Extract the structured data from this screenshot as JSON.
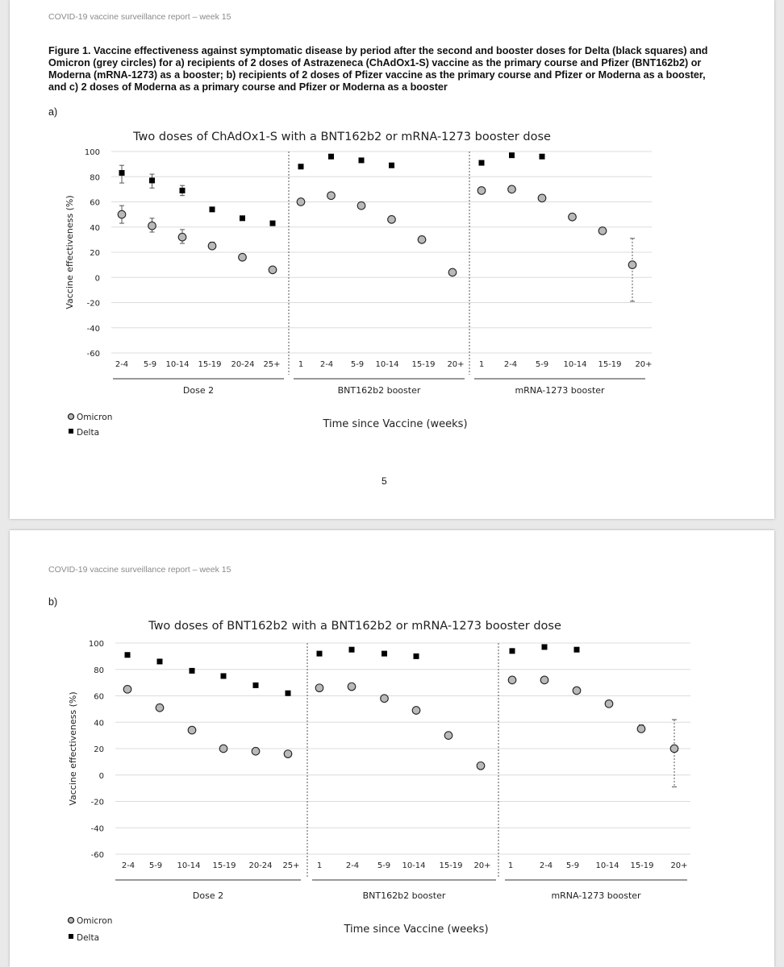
{
  "pages": [
    {
      "header": "COVID-19 vaccine surveillance report – week 15",
      "caption": "Figure 1. Vaccine effectiveness against symptomatic disease by period after the second and booster doses for Delta (black squares) and Omicron (grey circles) for a) recipients of 2 doses of Astrazeneca (ChAdOx1-S) vaccine as the primary course and Pfizer (BNT162b2) or Moderna (mRNA-1273) as a booster; b) recipients of 2 doses of Pfizer vaccine as the primary course and Pfizer or Moderna as a booster, and c) 2 doses of Moderna as a primary course and Pfizer or Moderna as a booster",
      "sublabel": "a)",
      "page_number": "5"
    },
    {
      "header": "COVID-19 vaccine surveillance report – week 15",
      "sublabel": "b)"
    }
  ],
  "chart_data": [
    {
      "type": "scatter",
      "title": "Two doses of ChAdOx1-S with a BNT162b2 or mRNA-1273 booster dose",
      "ylabel": "Vaccine effectiveness (%)",
      "xlabel": "Time since Vaccine (weeks)",
      "ylim": [
        -60,
        100
      ],
      "yticks": [
        100,
        80,
        60,
        40,
        20,
        0,
        -20,
        -40,
        -60
      ],
      "grid": true,
      "legend": [
        "Omicron",
        "Delta"
      ],
      "legend_position": "bottom-left",
      "categories": [
        "2-4",
        "5-9",
        "10-14",
        "15-19",
        "20-24",
        "25+",
        "1",
        "2-4",
        "5-9",
        "10-14",
        "15-19",
        "20+",
        "1",
        "2-4",
        "5-9",
        "10-14",
        "15-19",
        "20+"
      ],
      "groups": [
        {
          "label": "Dose 2",
          "count": 6
        },
        {
          "label": "BNT162b2 booster",
          "count": 6
        },
        {
          "label": "mRNA-1273 booster",
          "count": 6
        }
      ],
      "series": [
        {
          "name": "Omicron",
          "values": [
            50,
            41,
            32,
            25,
            16,
            6,
            60,
            65,
            57,
            46,
            30,
            4,
            69,
            70,
            63,
            48,
            37,
            10
          ],
          "error_low": [
            43,
            36,
            27,
            23,
            null,
            null,
            null,
            null,
            null,
            null,
            null,
            null,
            null,
            null,
            null,
            null,
            null,
            -19
          ],
          "error_high": [
            57,
            47,
            38,
            28,
            null,
            null,
            null,
            null,
            null,
            null,
            null,
            null,
            null,
            null,
            null,
            null,
            null,
            31
          ]
        },
        {
          "name": "Delta",
          "values": [
            83,
            77,
            69,
            54,
            47,
            43,
            88,
            96,
            93,
            89,
            null,
            null,
            91,
            97,
            96,
            null,
            null,
            null
          ],
          "error_low": [
            75,
            71,
            65,
            null,
            null,
            null,
            null,
            null,
            null,
            null,
            null,
            null,
            null,
            null,
            null,
            null,
            null,
            null
          ],
          "error_high": [
            89,
            82,
            73,
            null,
            null,
            null,
            null,
            null,
            null,
            null,
            null,
            null,
            null,
            null,
            null,
            null,
            null,
            null
          ]
        }
      ]
    },
    {
      "type": "scatter",
      "title": "Two doses of BNT162b2 with a BNT162b2 or mRNA-1273 booster dose",
      "ylabel": "Vaccine effectiveness (%)",
      "xlabel": "Time since Vaccine (weeks)",
      "ylim": [
        -60,
        100
      ],
      "yticks": [
        100,
        80,
        60,
        40,
        20,
        0,
        -20,
        -40,
        -60
      ],
      "grid": true,
      "legend": [
        "Omicron",
        "Delta"
      ],
      "legend_position": "bottom-left",
      "categories": [
        "2-4",
        "5-9",
        "10-14",
        "15-19",
        "20-24",
        "25+",
        "1",
        "2-4",
        "5-9",
        "10-14",
        "15-19",
        "20+",
        "1",
        "2-4",
        "5-9",
        "10-14",
        "15-19",
        "20+"
      ],
      "groups": [
        {
          "label": "Dose 2",
          "count": 6
        },
        {
          "label": "BNT162b2 booster",
          "count": 6
        },
        {
          "label": "mRNA-1273 booster",
          "count": 6
        }
      ],
      "series": [
        {
          "name": "Omicron",
          "values": [
            65,
            51,
            34,
            20,
            18,
            16,
            66,
            67,
            58,
            49,
            30,
            7,
            72,
            72,
            64,
            54,
            35,
            20
          ],
          "error_low": [
            null,
            null,
            null,
            null,
            null,
            null,
            null,
            null,
            null,
            null,
            null,
            null,
            null,
            null,
            null,
            null,
            33,
            -9
          ],
          "error_high": [
            null,
            null,
            null,
            null,
            null,
            null,
            null,
            null,
            null,
            null,
            null,
            null,
            null,
            null,
            null,
            null,
            38,
            42
          ]
        },
        {
          "name": "Delta",
          "values": [
            91,
            86,
            79,
            75,
            68,
            62,
            92,
            95,
            92,
            90,
            null,
            null,
            94,
            97,
            95,
            null,
            null,
            null
          ],
          "error_low": [
            null,
            null,
            null,
            null,
            null,
            null,
            null,
            null,
            null,
            null,
            null,
            null,
            null,
            null,
            null,
            null,
            null,
            null
          ],
          "error_high": [
            null,
            null,
            null,
            null,
            null,
            null,
            null,
            null,
            null,
            null,
            null,
            null,
            null,
            null,
            null,
            null,
            null,
            null
          ]
        }
      ]
    }
  ]
}
